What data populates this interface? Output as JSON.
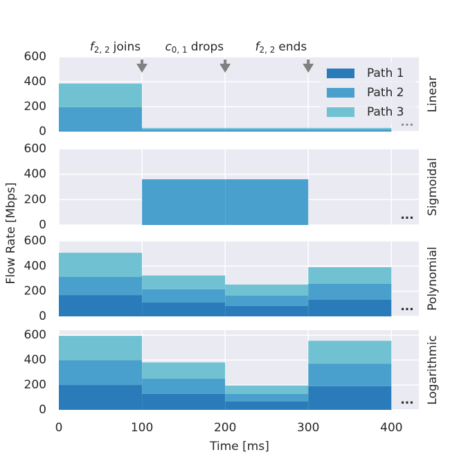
{
  "chart_data": {
    "type": "stacked_step",
    "xlabel": "Time [ms]",
    "ylabel": "Flow Rate [Mbps]",
    "xlim": [
      0,
      433
    ],
    "xticks": [
      0,
      100,
      200,
      300,
      400
    ],
    "bins": [
      0,
      100,
      200,
      300,
      400
    ],
    "grid": true,
    "legend": "upper right",
    "continuation": "...",
    "series": [
      {
        "name": "Path 1",
        "color": "#2a7bb9"
      },
      {
        "name": "Path 2",
        "color": "#4aa0cc"
      },
      {
        "name": "Path 3",
        "color": "#70c2d2"
      }
    ],
    "annotations": [
      {
        "x": 100,
        "symbol": "f",
        "subscript": "2, 2",
        "text": "joins"
      },
      {
        "x": 200,
        "symbol": "c",
        "subscript": "0, 1",
        "text": "drops"
      },
      {
        "x": 300,
        "symbol": "f",
        "subscript": "2, 2",
        "text": "ends"
      }
    ],
    "panels": [
      {
        "title": "Linear",
        "ylim": [
          0,
          600
        ],
        "yticks": [
          0,
          200,
          400,
          600
        ],
        "values": [
          [
            5,
            5,
            5,
            5
          ],
          [
            190,
            12,
            12,
            12
          ],
          [
            190,
            12,
            12,
            12
          ]
        ]
      },
      {
        "title": "Sigmoidal",
        "ylim": [
          0,
          600
        ],
        "yticks": [
          0,
          200,
          400,
          600
        ],
        "values": [
          [
            0,
            0,
            0,
            0
          ],
          [
            0,
            360,
            360,
            0
          ],
          [
            0,
            0,
            0,
            0
          ]
        ]
      },
      {
        "title": "Polynomial",
        "ylim": [
          0,
          600
        ],
        "yticks": [
          0,
          200,
          400,
          600
        ],
        "values": [
          [
            170,
            110,
            83,
            132
          ],
          [
            144,
            105,
            82,
            127
          ],
          [
            192,
            110,
            88,
            132
          ]
        ]
      },
      {
        "title": "Logarithmic",
        "ylim": [
          0,
          640
        ],
        "yticks": [
          0,
          200,
          400,
          600
        ],
        "values": [
          [
            200,
            129,
            67,
            190
          ],
          [
            200,
            123,
            62,
            180
          ],
          [
            195,
            129,
            67,
            185
          ]
        ]
      }
    ]
  }
}
